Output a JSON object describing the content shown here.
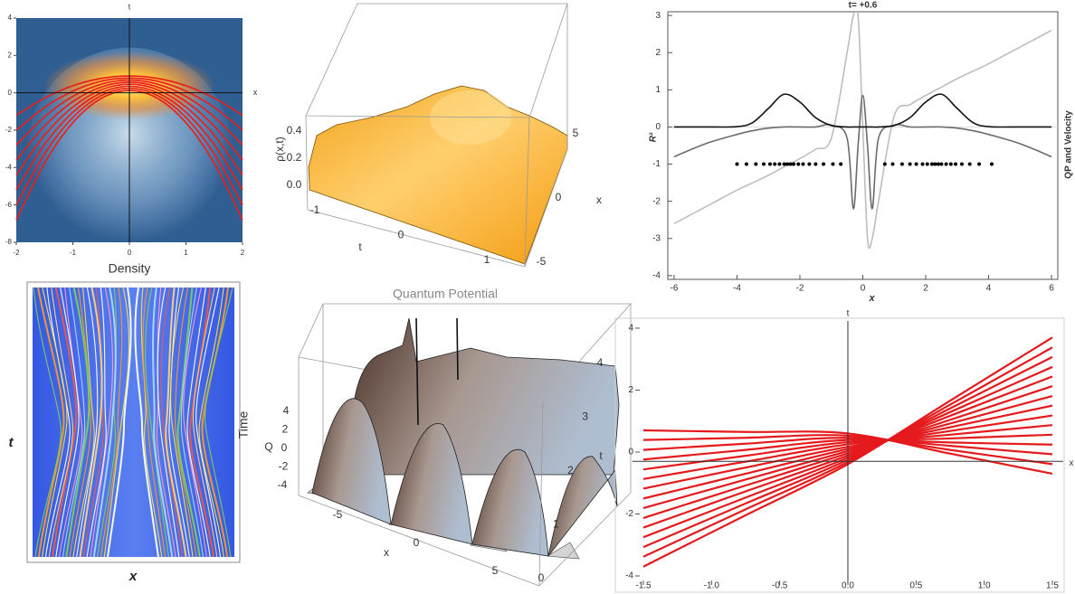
{
  "chart_data": [
    {
      "type": "heatmap",
      "caption": "Density",
      "xlabel": "x",
      "ylabel": "t",
      "xlim": [
        -2,
        2
      ],
      "ylim": [
        -8,
        4
      ],
      "xticks": [
        -2,
        -1,
        0,
        1,
        2
      ],
      "yticks": [
        4,
        2,
        0,
        -2,
        -4,
        -6,
        -8
      ],
      "color": "#e8201c",
      "x": [
        -2,
        -1.5,
        -1,
        -0.5,
        0,
        0.5,
        1,
        1.5,
        2
      ],
      "series": [
        {
          "values": [
            -1.2,
            -0.28,
            0.38,
            0.77,
            0.9,
            0.77,
            0.38,
            -0.28,
            -1.2
          ]
        },
        {
          "values": [
            -2.0,
            -0.78,
            0.09,
            0.62,
            0.79,
            0.62,
            0.09,
            -0.78,
            -2.0
          ]
        },
        {
          "values": [
            -2.8,
            -1.28,
            -0.19,
            0.46,
            0.68,
            0.46,
            -0.19,
            -1.28,
            -2.8
          ]
        },
        {
          "values": [
            -3.6,
            -1.78,
            -0.47,
            0.31,
            0.57,
            0.31,
            -0.47,
            -1.78,
            -3.6
          ]
        },
        {
          "values": [
            -4.4,
            -2.27,
            -0.76,
            0.16,
            0.46,
            0.16,
            -0.76,
            -2.27,
            -4.4
          ]
        },
        {
          "values": [
            -5.2,
            -2.77,
            -1.04,
            0.0,
            0.35,
            0.0,
            -1.04,
            -2.77,
            -5.2
          ]
        },
        {
          "values": [
            -6.0,
            -3.27,
            -1.32,
            -0.15,
            0.24,
            -0.15,
            -1.32,
            -3.27,
            -6.0
          ]
        },
        {
          "values": [
            -6.8,
            -3.77,
            -1.6,
            -0.3,
            0.13,
            -0.3,
            -1.6,
            -3.77,
            -6.8
          ]
        }
      ]
    },
    {
      "type": "surface",
      "zlabel": "ρ(x,t)",
      "zticks": [
        {
          "value": 0,
          "label": "0.0"
        },
        0.2,
        0.4
      ],
      "tlabel": "t",
      "tticks": [
        -1,
        0,
        1
      ],
      "xlabel": "x",
      "xticks": [
        -5,
        0,
        5
      ]
    },
    {
      "type": "line",
      "title": "t= +0.6",
      "ylabel": "R²",
      "right_label": "QP and Velocity",
      "xlabel": "x",
      "xlim": [
        -6.2,
        6.2
      ],
      "ylim": [
        -4.1,
        3.1
      ],
      "xticks": [
        -6,
        -4,
        -2,
        0,
        2,
        4,
        6
      ],
      "yticks": [
        3,
        2,
        1,
        0,
        -1,
        -2,
        -3,
        -4
      ],
      "x": [
        -6,
        -5,
        -4,
        -3.5,
        -3,
        -2.5,
        -2,
        -1.5,
        -1,
        -0.5,
        -0.3,
        -0.15,
        0,
        0.15,
        0.3,
        0.5,
        1,
        1.5,
        2,
        2.5,
        3,
        3.5,
        4,
        5,
        6
      ],
      "series": [
        {
          "color": "#bdbdbd",
          "values": [
            -2.6,
            -2.15,
            -1.7,
            -1.5,
            -1.3,
            -1.07,
            -0.85,
            -0.6,
            -0.3,
            2,
            3,
            3,
            0,
            -3,
            -3,
            -2,
            0.3,
            0.6,
            0.85,
            1.07,
            1.3,
            1.5,
            1.7,
            2.15,
            2.6
          ]
        },
        {
          "color": "#6b6b6b",
          "values": [
            -0.8,
            -0.45,
            -0.2,
            -0.1,
            -0.03,
            0,
            0,
            0,
            0.05,
            -0.3,
            -2.2,
            -0.5,
            0.85,
            -0.5,
            -2.2,
            -0.3,
            0.05,
            0,
            0,
            0,
            -0.03,
            -0.1,
            -0.2,
            -0.45,
            -0.8
          ]
        },
        {
          "color": "#111111",
          "values": [
            0,
            0,
            0.01,
            0.12,
            0.5,
            0.88,
            0.67,
            0.25,
            0.04,
            0,
            0,
            0,
            0,
            0,
            0,
            0,
            0.04,
            0.25,
            0.67,
            0.88,
            0.5,
            0.12,
            0.01,
            0,
            0
          ]
        }
      ],
      "points": {
        "color": "#000000",
        "x": [
          -4.0,
          -3.7,
          -3.4,
          -3.15,
          -2.95,
          -2.8,
          -2.65,
          -2.5,
          -2.4,
          -2.3,
          -2.2,
          -2.05,
          -1.9,
          -1.7,
          -1.5,
          -1.25,
          -0.95,
          -0.7,
          0.7,
          0.95,
          1.25,
          1.5,
          1.7,
          1.9,
          2.05,
          2.2,
          2.3,
          2.4,
          2.5,
          2.65,
          2.8,
          2.95,
          3.15,
          3.4,
          3.7,
          4.1
        ],
        "y": [
          -1,
          -1,
          -1,
          -1,
          -1,
          -1,
          -1,
          -1,
          -1,
          -1,
          -1,
          -1,
          -1,
          -1,
          -1,
          -1,
          -1,
          -1,
          -1,
          -1,
          -1,
          -1,
          -1,
          -1,
          -1,
          -1,
          -1,
          -1,
          -1,
          -1,
          -1,
          -1,
          -1,
          -1,
          -1,
          -1
        ]
      }
    },
    {
      "type": "trajectories",
      "xlabel": "x",
      "ylabel": "t"
    },
    {
      "type": "surface",
      "title": "Quantum Potential",
      "zlabel": "Q",
      "zticks": [
        4,
        2,
        0,
        -2,
        -4
      ],
      "side_label": "Time",
      "xlabel": "x",
      "xticks": [
        -5,
        0,
        5
      ],
      "tlabel": "t",
      "tticks": [
        0,
        1,
        2,
        3,
        4
      ]
    },
    {
      "type": "line",
      "xlabel": "x",
      "ylabel": "t",
      "xlim": [
        -1.5,
        1.5
      ],
      "ylim": [
        -4,
        4
      ],
      "xticks": [
        -1.5,
        {
          "value": -1,
          "label": "-1.0"
        },
        -0.5,
        {
          "value": 0,
          "label": "0.0"
        },
        0.5,
        {
          "value": 1,
          "label": "1.0"
        },
        1.5
      ],
      "yticks": [
        4,
        2,
        0,
        -2,
        -4
      ],
      "x_axis_at": -0.3,
      "color": "#e41a1c",
      "x": [
        -1.5,
        -0.75,
        0,
        0.75,
        1.5
      ],
      "series": [
        {
          "values": [
            0.7,
            0.65,
            0.6,
            -0.05,
            -0.7
          ]
        },
        {
          "values": [
            0.39,
            0.46,
            0.53,
            0.07,
            -0.39
          ]
        },
        {
          "values": [
            0.07,
            0.27,
            0.46,
            0.2,
            -0.07
          ]
        },
        {
          "values": [
            -0.24,
            0.07,
            0.39,
            0.31,
            0.24
          ]
        },
        {
          "values": [
            -0.56,
            -0.12,
            0.32,
            0.44,
            0.56
          ]
        },
        {
          "values": [
            -0.87,
            -0.31,
            0.25,
            0.56,
            0.87
          ]
        },
        {
          "values": [
            -1.18,
            -0.5,
            0.17,
            0.68,
            1.18
          ]
        },
        {
          "values": [
            -1.5,
            -0.7,
            0.1,
            0.8,
            1.5
          ]
        },
        {
          "values": [
            -1.81,
            -0.89,
            0.03,
            0.92,
            1.81
          ]
        },
        {
          "values": [
            -2.13,
            -1.08,
            -0.04,
            1.04,
            2.13
          ]
        },
        {
          "values": [
            -2.44,
            -1.27,
            -0.11,
            1.17,
            2.44
          ]
        },
        {
          "values": [
            -2.75,
            -1.47,
            -0.18,
            1.29,
            2.75
          ]
        },
        {
          "values": [
            -3.07,
            -1.66,
            -0.25,
            1.41,
            3.07
          ]
        },
        {
          "values": [
            -3.38,
            -1.85,
            -0.32,
            1.53,
            3.38
          ]
        },
        {
          "values": [
            -3.7,
            -2.04,
            -0.39,
            1.66,
            3.7
          ]
        }
      ]
    }
  ]
}
